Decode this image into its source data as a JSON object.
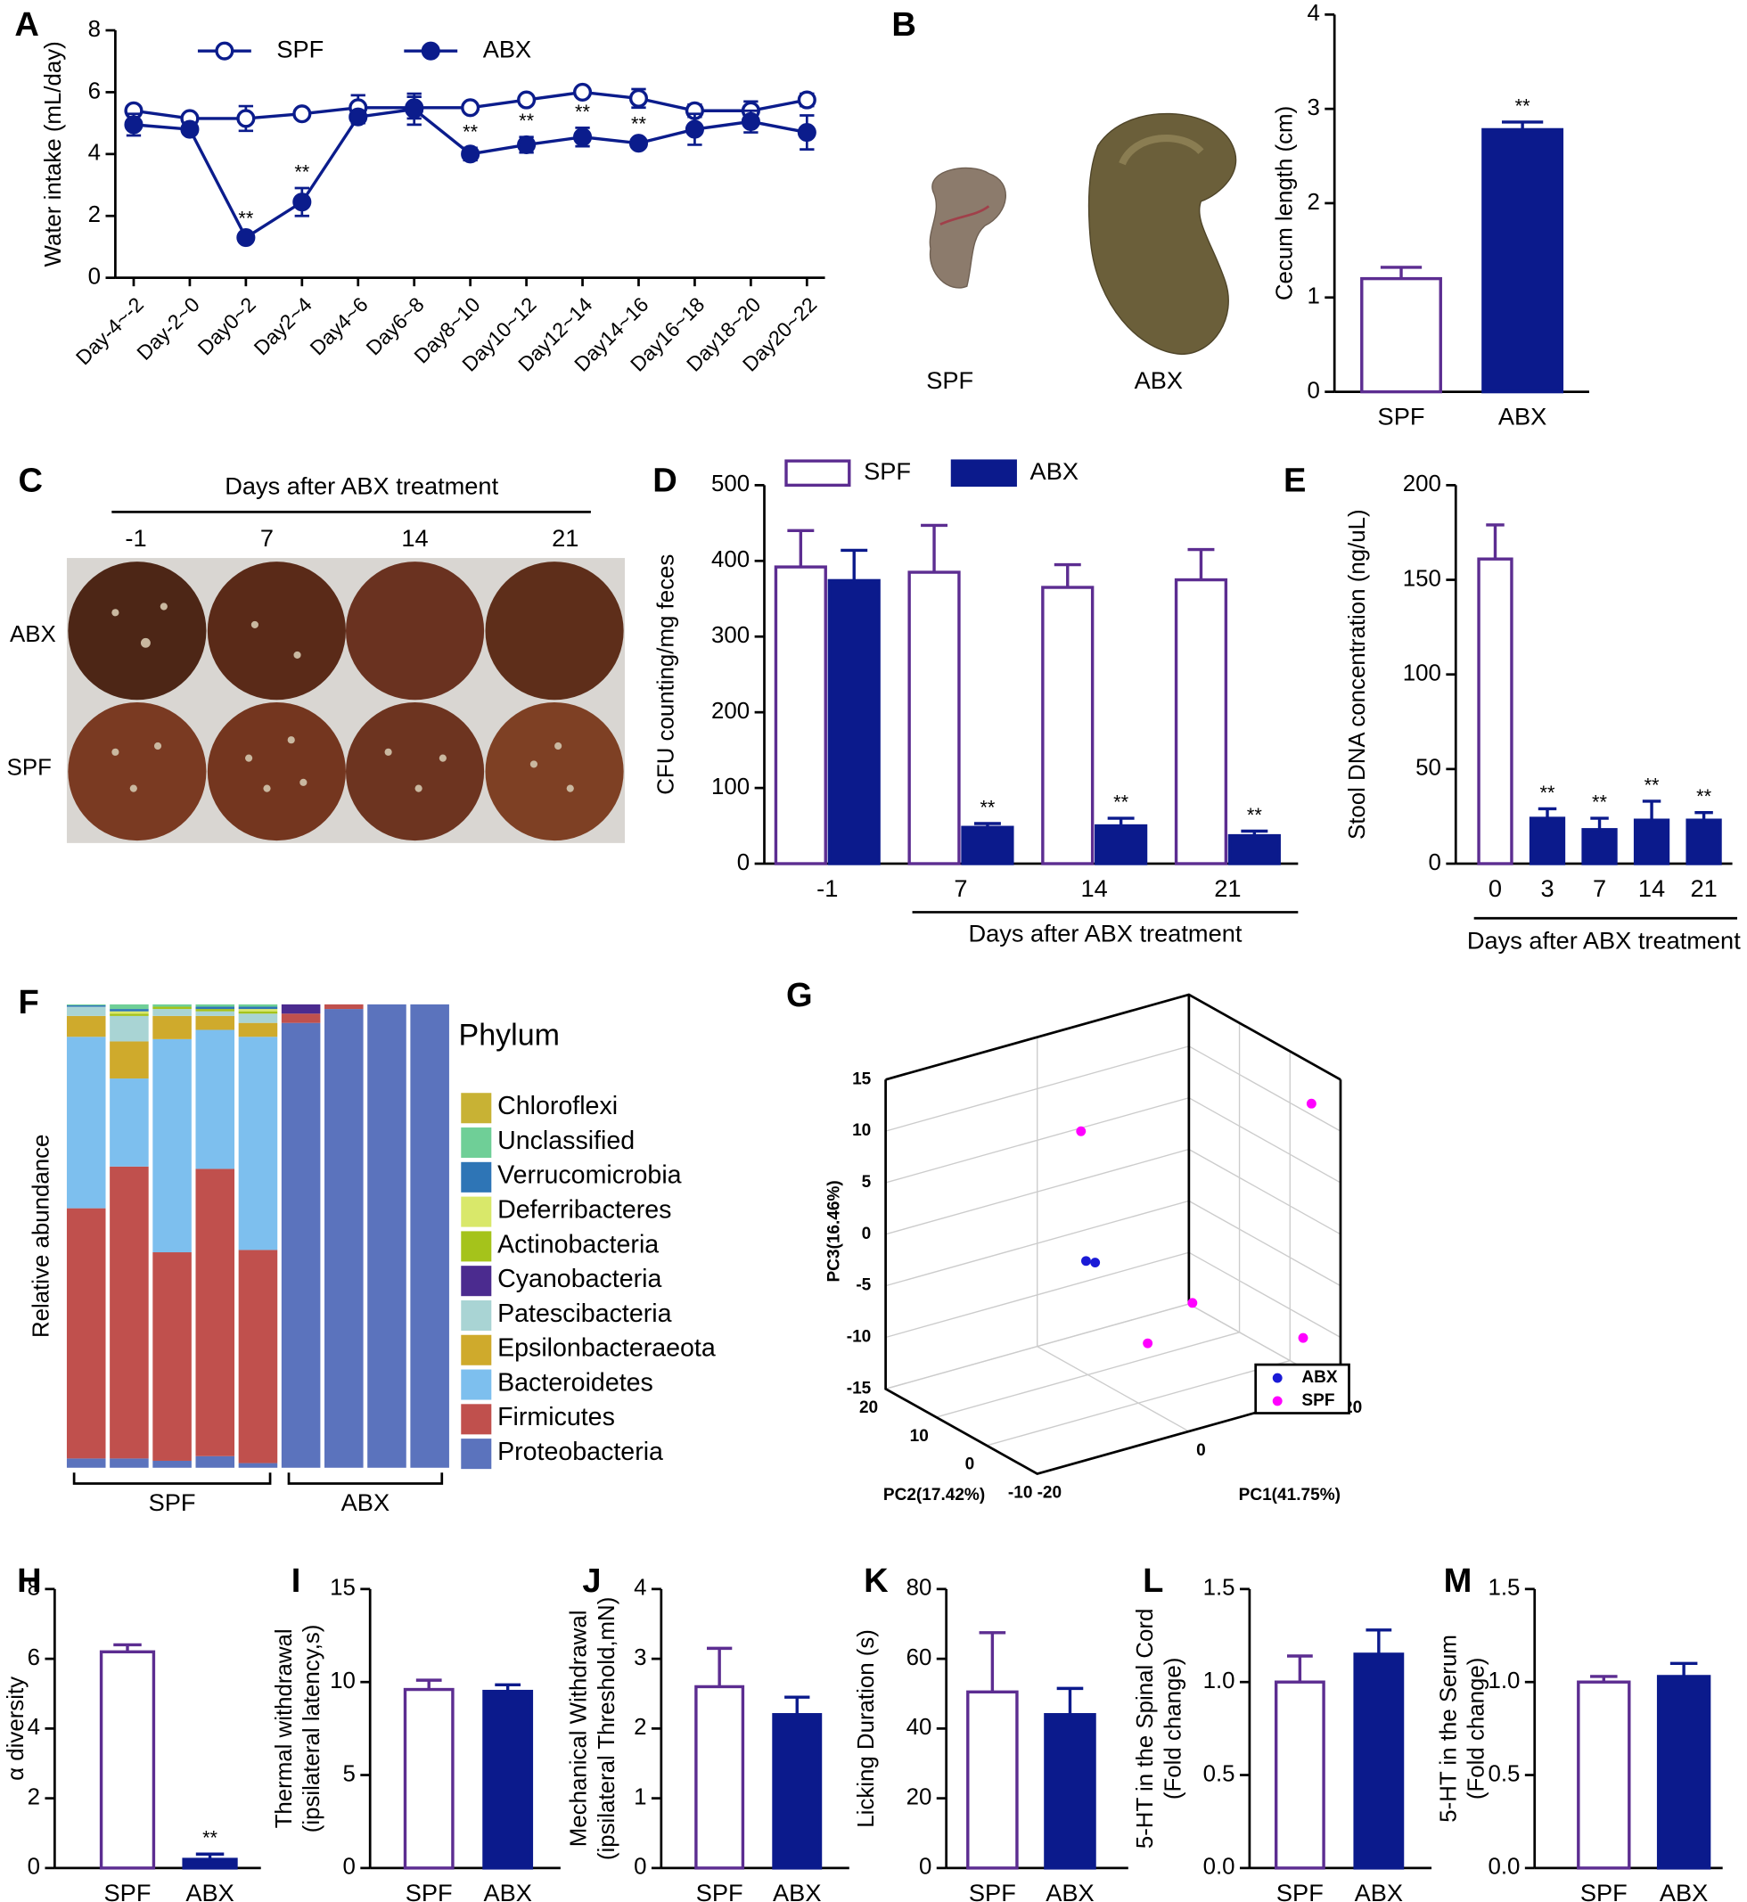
{
  "chart_data": [
    {
      "type": "line",
      "panel": "A",
      "ylabel": "Water intake (mL/day)",
      "categories": [
        "Day-4~-2",
        "Day-2~0",
        "Day0~2",
        "Day2~4",
        "Day4~6",
        "Day6~8",
        "Day8~10",
        "Day10~12",
        "Day12~14",
        "Day14~16",
        "Day16~18",
        "Day18~20",
        "Day20~22"
      ],
      "ylim": [
        0,
        8
      ],
      "yticks": [
        0,
        2,
        4,
        6,
        8
      ],
      "series": [
        {
          "name": "SPF",
          "color": "#0b1c8c",
          "fill": "#ffffff",
          "values": [
            5.4,
            5.15,
            5.15,
            5.3,
            5.5,
            5.5,
            5.5,
            5.75,
            6.0,
            5.8,
            5.4,
            5.4,
            5.75
          ],
          "errors": [
            0.15,
            0.1,
            0.4,
            0.1,
            0.4,
            0.35,
            0.1,
            0.15,
            0.1,
            0.3,
            0.2,
            0.3,
            0.2
          ]
        },
        {
          "name": "ABX",
          "color": "#0b1c8c",
          "fill": "#0b1c8c",
          "values": [
            4.95,
            4.8,
            1.3,
            2.45,
            5.2,
            5.45,
            4.0,
            4.3,
            4.55,
            4.35,
            4.8,
            5.05,
            4.7
          ],
          "errors": [
            0.35,
            0.15,
            0.1,
            0.45,
            0.2,
            0.5,
            0.2,
            0.25,
            0.3,
            0.1,
            0.5,
            0.35,
            0.55
          ],
          "significance": [
            null,
            null,
            "**",
            "**",
            null,
            null,
            "**",
            "**",
            "**",
            "**",
            null,
            null,
            null
          ]
        }
      ]
    },
    {
      "type": "bar",
      "panel": "B",
      "ylabel": "Cecum length (cm)",
      "categories": [
        "SPF",
        "ABX"
      ],
      "values": [
        1.2,
        2.78
      ],
      "errors": [
        0.12,
        0.08
      ],
      "fill_colors": [
        "#ffffff",
        "#0b1a8c"
      ],
      "edge_colors": [
        "#5c2d91",
        "#0b1a8c"
      ],
      "significance": [
        null,
        "**"
      ],
      "ylim": [
        0,
        4
      ],
      "yticks": [
        0,
        1,
        2,
        3,
        4
      ]
    },
    {
      "type": "bar",
      "panel": "D",
      "ylabel": "CFU counting/mg feces",
      "xlabel": "Days after ABX treatment",
      "categories": [
        "-1",
        "7",
        "14",
        "21"
      ],
      "ylim": [
        0,
        500
      ],
      "yticks": [
        0,
        100,
        200,
        300,
        400,
        500
      ],
      "series": [
        {
          "name": "SPF",
          "color": "#5c2d91",
          "fill": "#ffffff",
          "values": [
            392,
            385,
            365,
            375
          ],
          "errors": [
            48,
            62,
            30,
            40
          ]
        },
        {
          "name": "ABX",
          "color": "#0b1a8c",
          "fill": "#0b1a8c",
          "values": [
            374,
            48,
            50,
            37
          ],
          "errors": [
            40,
            5,
            10,
            6
          ],
          "significance": [
            null,
            "**",
            "**",
            "**"
          ]
        }
      ]
    },
    {
      "type": "bar",
      "panel": "E",
      "ylabel": "Stool DNA concentration (ng/uL)",
      "xlabel": "Days after ABX treatment",
      "categories": [
        "0",
        "3",
        "7",
        "14",
        "21"
      ],
      "values": [
        161,
        24,
        18,
        23,
        23
      ],
      "errors": [
        18,
        5,
        6,
        10,
        4
      ],
      "fill_colors": [
        "#ffffff",
        "#0b1a8c",
        "#0b1a8c",
        "#0b1a8c",
        "#0b1a8c"
      ],
      "edge_colors": [
        "#5c2d91",
        "#0b1a8c",
        "#0b1a8c",
        "#0b1a8c",
        "#0b1a8c"
      ],
      "significance": [
        null,
        "**",
        "**",
        "**",
        "**"
      ],
      "ylim": [
        0,
        200
      ],
      "yticks": [
        0,
        50,
        100,
        150,
        200
      ]
    },
    {
      "type": "stacked_bar",
      "panel": "F",
      "ylabel": "Relative abundance",
      "legend_title": "Phylum",
      "categories": [
        null,
        null,
        null,
        null,
        null,
        null,
        null,
        null,
        null
      ],
      "groups": [
        {
          "label": "SPF",
          "count": 5
        },
        {
          "label": "ABX",
          "count": 4
        }
      ],
      "ylim": [
        0,
        100
      ],
      "series": [
        {
          "name": "Proteobacteria",
          "color": "#5b73bd",
          "values": [
            2,
            2,
            1.5,
            2.5,
            1,
            96,
            99,
            100,
            100
          ]
        },
        {
          "name": "Firmicutes",
          "color": "#c0504d",
          "values": [
            54,
            63,
            45,
            62,
            46,
            2,
            1,
            0,
            0
          ]
        },
        {
          "name": "Bacteroidetes",
          "color": "#7dbfee",
          "values": [
            37,
            19,
            46,
            30,
            46,
            0,
            0,
            0,
            0
          ]
        },
        {
          "name": "Epsilonbacteraeota",
          "color": "#cfaa2c",
          "values": [
            4.5,
            8,
            5,
            3,
            3,
            0,
            0,
            0,
            0
          ]
        },
        {
          "name": "Patescibacteria",
          "color": "#a9d4d4",
          "values": [
            2,
            5.5,
            1.5,
            1,
            2,
            0,
            0,
            0,
            0
          ]
        },
        {
          "name": "Cyanobacteria",
          "color": "#4b2b8f",
          "values": [
            0,
            0,
            0,
            0,
            0,
            2,
            0,
            0,
            0
          ]
        },
        {
          "name": "Actinobacteria",
          "color": "#a5c31b",
          "values": [
            0,
            0.5,
            0.5,
            0.5,
            0.5,
            0,
            0,
            0,
            0
          ]
        },
        {
          "name": "Deferribacteres",
          "color": "#d9e86a",
          "values": [
            0,
            0.5,
            0,
            0,
            0.5,
            0,
            0,
            0,
            0
          ]
        },
        {
          "name": "Verrucomicrobia",
          "color": "#2e75b6",
          "values": [
            0.3,
            0.5,
            0,
            0.5,
            0.5,
            0,
            0,
            0,
            0
          ]
        },
        {
          "name": "Unclassified",
          "color": "#6fcf97",
          "values": [
            0.2,
            1,
            0.5,
            0.5,
            0.5,
            0,
            0,
            0,
            0
          ]
        },
        {
          "name": "Chloroflexi",
          "color": "#c8b234",
          "values": [
            0,
            0,
            0,
            0,
            0,
            0,
            0,
            0,
            0
          ]
        }
      ]
    },
    {
      "type": "scatter3d",
      "panel": "G",
      "xlabel": "PC1(41.75%)",
      "ylabel": "PC2(17.42%)",
      "zlabel": "PC3(16.46%)",
      "xlim": [
        -20,
        20
      ],
      "ylim": [
        -10,
        20
      ],
      "zlim": [
        -15,
        15
      ],
      "xticks": [
        -20,
        0,
        20
      ],
      "yticks": [
        -10,
        0,
        10,
        20
      ],
      "zticks": [
        -15,
        -10,
        -5,
        0,
        5,
        10,
        15
      ],
      "series": [
        {
          "name": "ABX",
          "color": "#1a1ad6",
          "x": [
            -6.9,
            -5.7
          ],
          "y": [
            0,
            0
          ],
          "z": [
            0.2,
            -0.2
          ]
        },
        {
          "name": "SPF",
          "color": "#ff00ff",
          "x": [
            -0.9,
            19.5,
            3.8,
            -2.1,
            18.4
          ],
          "y": [
            10,
            -5,
            -5,
            -5,
            -5
          ],
          "z": [
            8.8,
            11.4,
            -4.7,
            -7.4,
            -11.1
          ]
        }
      ]
    },
    {
      "type": "bar",
      "panel": "H",
      "ylabel": "α diversity",
      "categories": [
        "SPF",
        "ABX"
      ],
      "values": [
        6.2,
        0.25
      ],
      "errors": [
        0.2,
        0.15
      ],
      "fill_colors": [
        "#ffffff",
        "#0b1a8c"
      ],
      "edge_colors": [
        "#5c2d91",
        "#0b1a8c"
      ],
      "significance": [
        null,
        "**"
      ],
      "ylim": [
        0,
        8
      ],
      "yticks": [
        0,
        2,
        4,
        6,
        8
      ]
    },
    {
      "type": "bar",
      "panel": "I",
      "ylabel": [
        "Thermal withdrawal",
        "(ipsilateral latency,s)"
      ],
      "categories": [
        "SPF",
        "ABX"
      ],
      "values": [
        9.6,
        9.5
      ],
      "errors": [
        0.5,
        0.35
      ],
      "fill_colors": [
        "#ffffff",
        "#0b1a8c"
      ],
      "edge_colors": [
        "#5c2d91",
        "#0b1a8c"
      ],
      "ylim": [
        0,
        15
      ],
      "yticks": [
        0,
        5,
        10,
        15
      ]
    },
    {
      "type": "bar",
      "panel": "J",
      "ylabel": [
        "Mechanical Withdrawal",
        "(ipsilateral Threshold,mN)"
      ],
      "categories": [
        "SPF",
        "ABX"
      ],
      "values": [
        2.6,
        2.2
      ],
      "errors": [
        0.55,
        0.25
      ],
      "fill_colors": [
        "#ffffff",
        "#0b1a8c"
      ],
      "edge_colors": [
        "#5c2d91",
        "#0b1a8c"
      ],
      "ylim": [
        0,
        4
      ],
      "yticks": [
        0,
        1,
        2,
        3,
        4
      ]
    },
    {
      "type": "bar",
      "panel": "K",
      "ylabel": "Licking Duration (s)",
      "categories": [
        "SPF",
        "ABX"
      ],
      "values": [
        50.5,
        44
      ],
      "errors": [
        17,
        7.5
      ],
      "fill_colors": [
        "#ffffff",
        "#0b1a8c"
      ],
      "edge_colors": [
        "#5c2d91",
        "#0b1a8c"
      ],
      "ylim": [
        0,
        80
      ],
      "yticks": [
        0,
        20,
        40,
        60,
        80
      ]
    },
    {
      "type": "bar",
      "panel": "L",
      "ylabel": [
        "5-HT in the Spinal Cord",
        "(Fold change)"
      ],
      "categories": [
        "SPF",
        "ABX"
      ],
      "values": [
        1.0,
        1.15
      ],
      "errors": [
        0.14,
        0.13
      ],
      "fill_colors": [
        "#ffffff",
        "#0b1a8c"
      ],
      "edge_colors": [
        "#5c2d91",
        "#0b1a8c"
      ],
      "ylim": [
        0,
        1.5
      ],
      "yticks": [
        {
          "value": 0,
          "label": "0.0"
        },
        0.5,
        {
          "value": 1,
          "label": "1.0"
        },
        1.5
      ]
    },
    {
      "type": "bar",
      "panel": "M",
      "ylabel": [
        "5-HT in the Serum",
        "(Fold change)"
      ],
      "categories": [
        "SPF",
        "ABX"
      ],
      "values": [
        1.0,
        1.03
      ],
      "errors": [
        0.03,
        0.07
      ],
      "fill_colors": [
        "#ffffff",
        "#0b1a8c"
      ],
      "edge_colors": [
        "#5c2d91",
        "#0b1a8c"
      ],
      "ylim": [
        0,
        1.5
      ],
      "yticks": [
        {
          "value": 0,
          "label": "0.0"
        },
        0.5,
        {
          "value": 1,
          "label": "1.0"
        },
        1.5
      ]
    }
  ],
  "photos": {
    "cecum": {
      "labels": [
        "SPF",
        "ABX"
      ]
    },
    "plates": {
      "panel": "C",
      "title": "Days after ABX treatment",
      "columns": [
        "-1",
        "7",
        "14",
        "21"
      ],
      "rows": [
        "ABX",
        "SPF"
      ]
    }
  }
}
